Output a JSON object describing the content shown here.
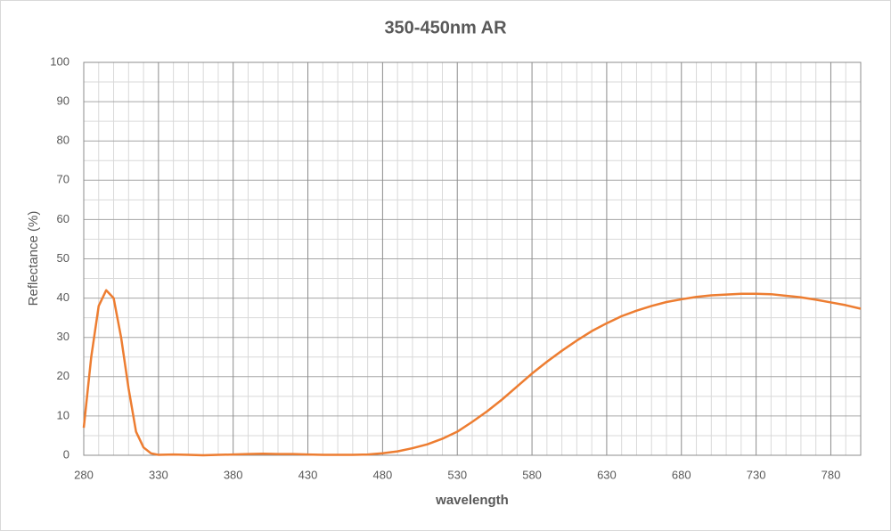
{
  "chart_data": {
    "type": "line",
    "title": "350-450nm AR",
    "xlabel": "wavelength",
    "ylabel": "Reflectance (%)",
    "x": [
      280,
      285,
      290,
      295,
      300,
      305,
      310,
      315,
      320,
      325,
      330,
      340,
      350,
      360,
      370,
      380,
      390,
      400,
      410,
      420,
      430,
      440,
      450,
      460,
      470,
      480,
      490,
      500,
      510,
      520,
      530,
      540,
      550,
      560,
      570,
      580,
      590,
      600,
      610,
      620,
      630,
      640,
      650,
      660,
      670,
      680,
      690,
      700,
      710,
      720,
      730,
      740,
      750,
      760,
      770,
      780,
      790,
      800
    ],
    "series": [
      {
        "color": "#ed7d31",
        "values": [
          7,
          25,
          38,
          42,
          40,
          30,
          17,
          6,
          2,
          0.5,
          0.1,
          0.2,
          0.1,
          0,
          0.1,
          0.2,
          0.3,
          0.4,
          0.3,
          0.3,
          0.2,
          0.1,
          0.1,
          0.1,
          0.2,
          0.5,
          1,
          1.8,
          2.8,
          4.2,
          6,
          8.5,
          11.2,
          14.2,
          17.5,
          20.8,
          23.8,
          26.6,
          29.2,
          31.6,
          33.6,
          35.4,
          36.8,
          38,
          39,
          39.7,
          40.3,
          40.7,
          40.9,
          41.1,
          41.1,
          41,
          40.6,
          40.2,
          39.6,
          38.9,
          38.2,
          37.3
        ]
      }
    ],
    "xlim": [
      280,
      800
    ],
    "xticks": [
      280,
      330,
      380,
      430,
      480,
      530,
      580,
      630,
      680,
      730,
      780
    ],
    "ylim": [
      0,
      100
    ],
    "yticks": [
      0,
      10,
      20,
      30,
      40,
      50,
      60,
      70,
      80,
      90,
      100
    ],
    "grid": true,
    "minor_grid": true
  }
}
